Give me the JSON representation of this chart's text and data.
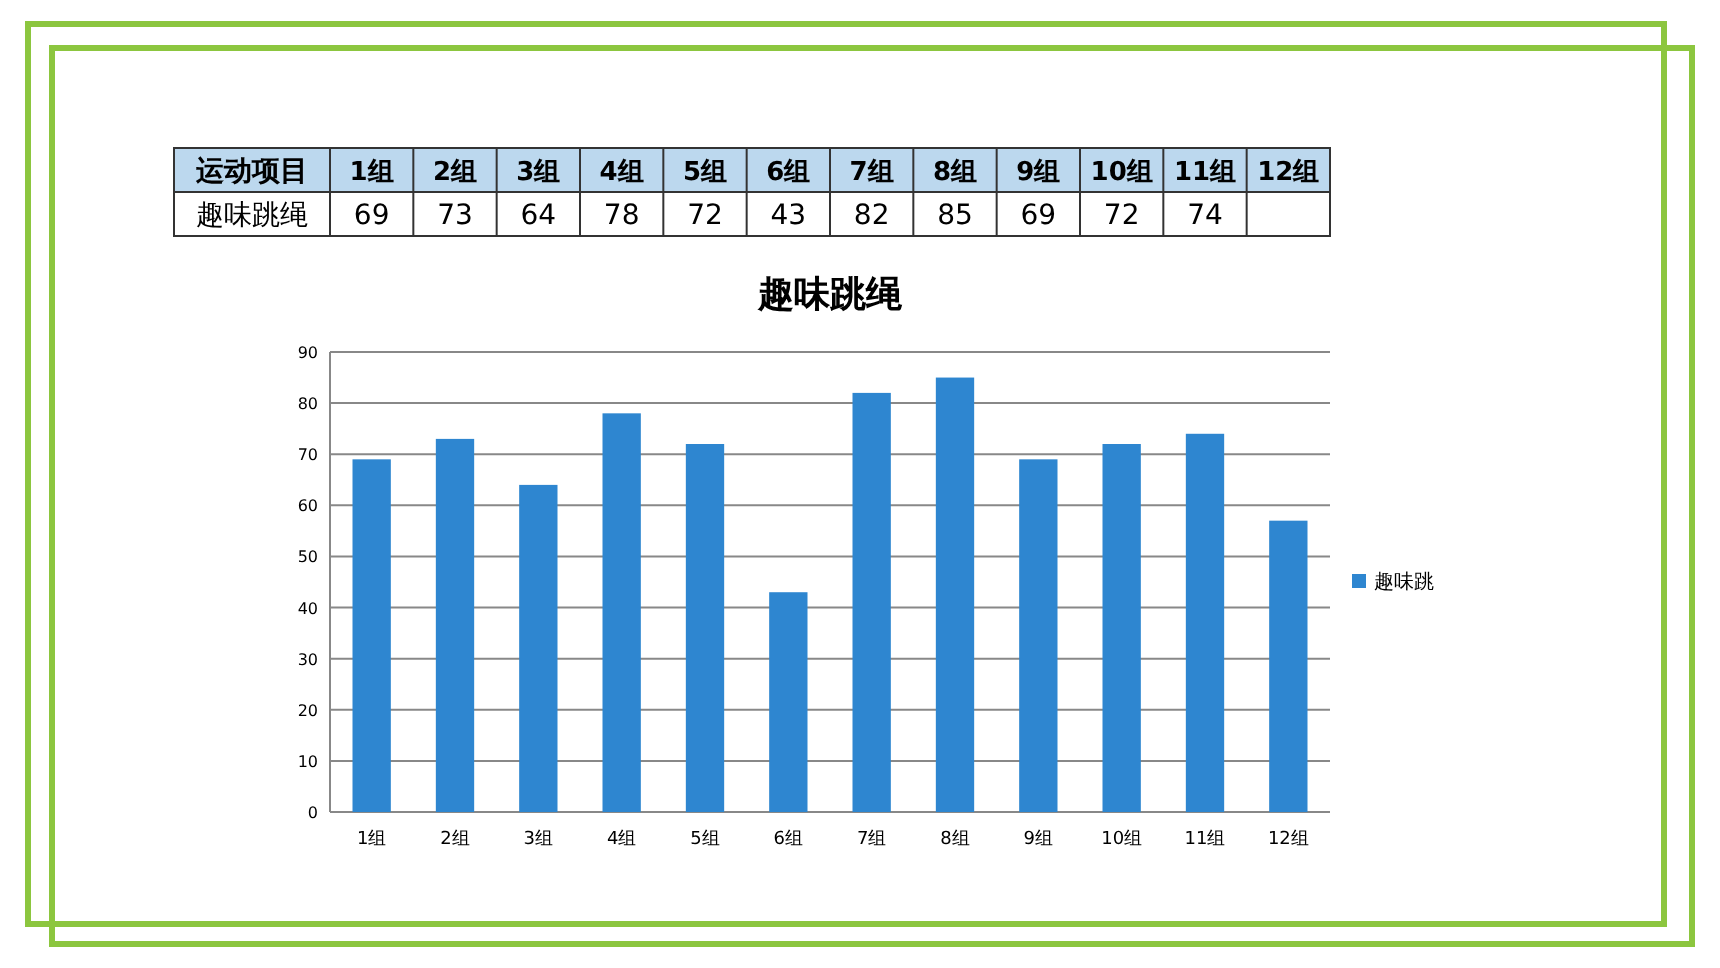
{
  "chart_data": {
    "type": "bar",
    "title": "趣味跳绳",
    "categories": [
      "1组",
      "2组",
      "3组",
      "4组",
      "5组",
      "6组",
      "7组",
      "8组",
      "9组",
      "10组",
      "11组",
      "12组"
    ],
    "series": [
      {
        "name": "趣味跳",
        "color": "#2e86d0",
        "values": [
          69,
          73,
          64,
          78,
          72,
          43,
          82,
          85,
          69,
          72,
          74,
          57
        ],
        "value_labels": [
          "69",
          "73",
          "64",
          "78",
          "72",
          "43",
          "82",
          "85",
          "69",
          "72",
          "74",
          null
        ]
      }
    ],
    "annotations": [
      "运动项目",
      "趣味跳绳"
    ],
    "ylim": [
      0,
      90
    ],
    "yticks": [
      0,
      10,
      20,
      30,
      40,
      50,
      60,
      70,
      80,
      90
    ],
    "grid": "y",
    "legend": "right"
  }
}
